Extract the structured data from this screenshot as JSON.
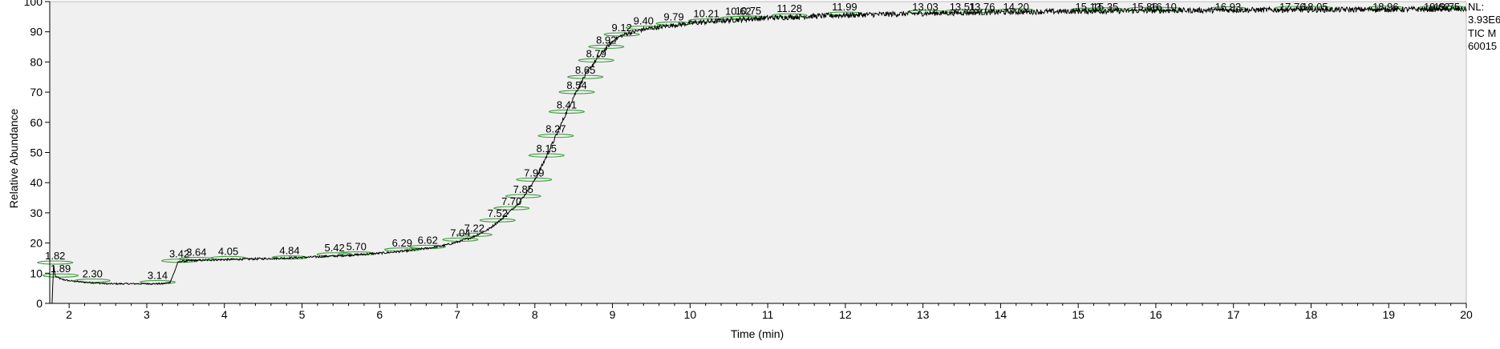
{
  "chart_data": {
    "type": "line",
    "title": "",
    "xlabel": "Time (min)",
    "ylabel": "Relative Abundance",
    "xlim": [
      1.75,
      20
    ],
    "ylim": [
      0,
      100
    ],
    "x_ticks": [
      2,
      3,
      4,
      5,
      6,
      7,
      8,
      9,
      10,
      11,
      12,
      13,
      14,
      15,
      16,
      17,
      18,
      19,
      20
    ],
    "y_ticks": [
      0,
      10,
      20,
      30,
      40,
      50,
      60,
      70,
      80,
      90,
      100
    ],
    "grid": false,
    "colors": {
      "plot_background": "#f0f0f0",
      "trace": "#000000",
      "peak_marker": "#3a9a3a",
      "axes": "#000000"
    },
    "info_text": [
      "NL:",
      "3.93E6",
      "TIC  M",
      "60015"
    ],
    "series": [
      {
        "x": [
          1.78,
          1.8,
          1.82,
          1.86,
          1.9,
          2.0,
          2.2,
          2.5,
          2.8,
          3.0,
          3.2,
          3.3,
          3.35,
          3.4,
          3.45,
          3.5,
          3.6,
          3.8,
          4.0,
          4.5,
          5.0,
          5.5,
          6.0,
          6.3,
          6.6,
          6.8,
          7.0,
          7.2,
          7.4,
          7.6,
          7.8,
          7.9,
          8.0,
          8.1,
          8.2,
          8.3,
          8.4,
          8.5,
          8.6,
          8.7,
          8.8,
          8.9,
          9.0,
          9.1,
          9.2,
          9.4,
          9.6,
          9.8,
          10.0,
          10.3,
          10.6,
          11.0,
          11.5,
          12.0,
          13.0,
          14.0,
          15.0,
          16.0,
          17.0,
          18.0,
          19.0,
          20.0
        ],
        "y": [
          0,
          13,
          9,
          8.5,
          8,
          7.5,
          7,
          6.5,
          6.5,
          6.5,
          6.5,
          7,
          10,
          13.5,
          14,
          14,
          14.2,
          14.4,
          14.5,
          14.8,
          15.2,
          15.8,
          16.6,
          17.3,
          18.2,
          19.0,
          20.3,
          22.0,
          24.5,
          28.5,
          33.5,
          37,
          41,
          46,
          51.5,
          57,
          63,
          68.5,
          73.5,
          77.5,
          81,
          84,
          86.8,
          88.5,
          89.5,
          90.8,
          91.6,
          92.2,
          92.8,
          93.5,
          94.0,
          94.6,
          95.1,
          95.5,
          96.1,
          96.5,
          96.8,
          97.0,
          97.2,
          97.3,
          97.4,
          97.5
        ]
      }
    ],
    "peak_labels": [
      {
        "label": "1.82",
        "x": 1.82,
        "y": 13
      },
      {
        "label": "1.89",
        "x": 1.89,
        "y": 8.7
      },
      {
        "label": "2.30",
        "x": 2.3,
        "y": 7
      },
      {
        "label": "3.14",
        "x": 3.14,
        "y": 6.5
      },
      {
        "label": "3.42",
        "x": 3.42,
        "y": 13.6
      },
      {
        "label": "3.64",
        "x": 3.64,
        "y": 14.2
      },
      {
        "label": "4.05",
        "x": 4.05,
        "y": 14.5
      },
      {
        "label": "4.84",
        "x": 4.84,
        "y": 14.7
      },
      {
        "label": "5.42",
        "x": 5.42,
        "y": 15.7
      },
      {
        "label": "5.70",
        "x": 5.7,
        "y": 16.0
      },
      {
        "label": "6.29",
        "x": 6.29,
        "y": 17.3
      },
      {
        "label": "6.62",
        "x": 6.62,
        "y": 18.2
      },
      {
        "label": "7.04",
        "x": 7.04,
        "y": 20.6
      },
      {
        "label": "7.22",
        "x": 7.22,
        "y": 22.2
      },
      {
        "label": "7.52",
        "x": 7.52,
        "y": 27.0
      },
      {
        "label": "7.70",
        "x": 7.7,
        "y": 31.0
      },
      {
        "label": "7.85",
        "x": 7.85,
        "y": 35.0
      },
      {
        "label": "7.99",
        "x": 7.99,
        "y": 40.5
      },
      {
        "label": "8.15",
        "x": 8.15,
        "y": 48.5
      },
      {
        "label": "8.27",
        "x": 8.27,
        "y": 55.0
      },
      {
        "label": "8.41",
        "x": 8.41,
        "y": 63.0
      },
      {
        "label": "8.54",
        "x": 8.54,
        "y": 69.5
      },
      {
        "label": "8.65",
        "x": 8.65,
        "y": 74.5
      },
      {
        "label": "8.79",
        "x": 8.79,
        "y": 80.0
      },
      {
        "label": "8.92",
        "x": 8.92,
        "y": 84.5
      },
      {
        "label": "9.12",
        "x": 9.12,
        "y": 88.6
      },
      {
        "label": "9.40",
        "x": 9.4,
        "y": 90.8
      },
      {
        "label": "9.79",
        "x": 9.79,
        "y": 92.2
      },
      {
        "label": "10.21",
        "x": 10.21,
        "y": 93.2
      },
      {
        "label": "10.62",
        "x": 10.62,
        "y": 94.0
      },
      {
        "label": "10.75",
        "x": 10.75,
        "y": 94.2
      },
      {
        "label": "11.28",
        "x": 11.28,
        "y": 94.9
      },
      {
        "label": "11.99",
        "x": 11.99,
        "y": 95.5
      },
      {
        "label": "13.03",
        "x": 13.03,
        "y": 96.1
      },
      {
        "label": "13.51",
        "x": 13.51,
        "y": 96.3
      },
      {
        "label": "13.76",
        "x": 13.76,
        "y": 96.4
      },
      {
        "label": "14.20",
        "x": 14.2,
        "y": 96.6
      },
      {
        "label": "15.13",
        "x": 15.13,
        "y": 96.8
      },
      {
        "label": "15.35",
        "x": 15.35,
        "y": 96.9
      },
      {
        "label": "15.86",
        "x": 15.86,
        "y": 97.0
      },
      {
        "label": "16.10",
        "x": 16.1,
        "y": 97.0
      },
      {
        "label": "16.93",
        "x": 16.93,
        "y": 97.2
      },
      {
        "label": "17.76",
        "x": 17.76,
        "y": 97.3
      },
      {
        "label": "18.05",
        "x": 18.05,
        "y": 97.3
      },
      {
        "label": "18.96",
        "x": 18.96,
        "y": 97.4
      },
      {
        "label": "19.62",
        "x": 19.62,
        "y": 97.5
      },
      {
        "label": "19.75",
        "x": 19.75,
        "y": 97.5
      }
    ]
  }
}
